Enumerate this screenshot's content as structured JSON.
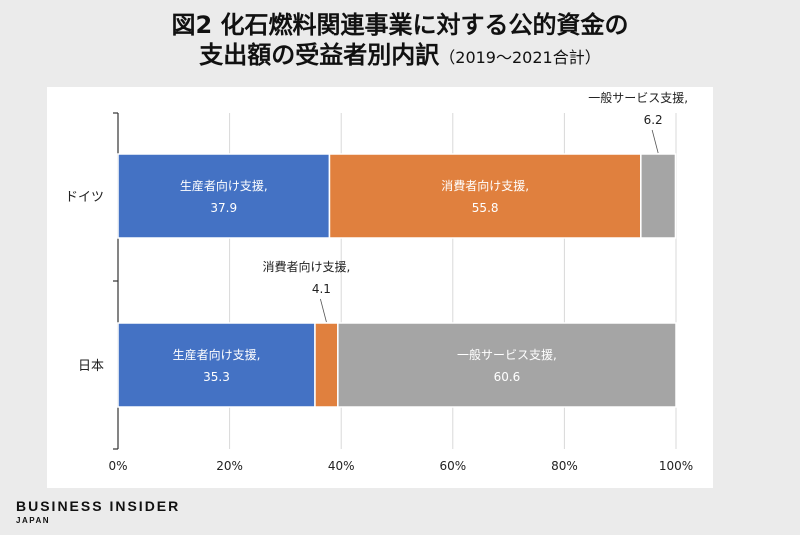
{
  "title_line1": "図2 化石燃料関連事業に対する公的資金の",
  "title_line2": "支出額の受益者別内訳",
  "title_note": "（2019～2021合計）",
  "brand": "BUSINESS INSIDER",
  "brand_sub": "JAPAN",
  "chart_data": {
    "type": "bar",
    "orientation": "horizontal",
    "stacked": true,
    "categories": [
      "ドイツ",
      "日本"
    ],
    "series": [
      {
        "name": "生産者向け支援",
        "values": [
          37.9,
          35.3
        ],
        "color": "#4472c4"
      },
      {
        "name": "消費者向け支援",
        "values": [
          55.8,
          4.1
        ],
        "color": "#e0803e"
      },
      {
        "name": "一般サービス支援",
        "values": [
          6.2,
          60.6
        ],
        "color": "#a5a5a5"
      }
    ],
    "xlim": [
      0,
      100
    ],
    "xticks": [
      "0%",
      "20%",
      "40%",
      "60%",
      "80%",
      "100%"
    ],
    "grid": true,
    "legend": "none"
  }
}
